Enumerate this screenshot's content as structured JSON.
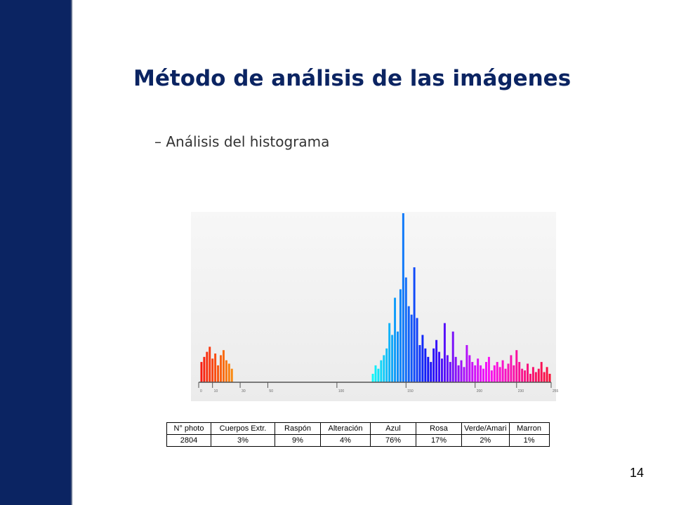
{
  "header": {
    "title": "Método de análisis de las imágenes",
    "bullet": "– Análisis del histograma"
  },
  "chart_data": {
    "type": "bar",
    "x": [
      2,
      4,
      6,
      8,
      10,
      12,
      14,
      16,
      18,
      20,
      22,
      24,
      126,
      128,
      130,
      132,
      134,
      136,
      138,
      140,
      142,
      144,
      146,
      148,
      150,
      152,
      154,
      156,
      158,
      160,
      162,
      164,
      166,
      168,
      170,
      172,
      174,
      176,
      178,
      180,
      182,
      184,
      186,
      188,
      190,
      192,
      194,
      196,
      198,
      200,
      202,
      204,
      206,
      208,
      210,
      212,
      214,
      216,
      218,
      220,
      222,
      224,
      226,
      228,
      230,
      232,
      234,
      236,
      238,
      240,
      242,
      244,
      246,
      248,
      250,
      252,
      254
    ],
    "values": [
      12,
      15,
      18,
      21,
      14,
      17,
      10,
      16,
      19,
      13,
      11,
      8,
      5,
      10,
      8,
      13,
      16,
      20,
      35,
      28,
      50,
      30,
      55,
      100,
      62,
      45,
      40,
      68,
      38,
      22,
      28,
      20,
      15,
      12,
      20,
      25,
      18,
      14,
      35,
      16,
      12,
      30,
      15,
      10,
      13,
      9,
      22,
      16,
      12,
      10,
      14,
      10,
      8,
      12,
      15,
      7,
      10,
      12,
      9,
      13,
      8,
      11,
      16,
      10,
      19,
      12,
      8,
      7,
      11,
      5,
      9,
      6,
      8,
      12,
      6,
      9,
      5
    ],
    "xlim": [
      0,
      255
    ],
    "ylim": [
      0,
      100
    ],
    "xticks": [
      0,
      10,
      30,
      50,
      100,
      150,
      200,
      230,
      255
    ]
  },
  "table": {
    "rows": [
      [
        "N° photo",
        "Cuerpos  Extr.",
        "Raspón",
        "Alteración",
        "Azul",
        "Rosa",
        "Verde/Amari",
        "Marron"
      ],
      [
        "2804",
        "3%",
        "9%",
        "4%",
        "76%",
        "17%",
        "2%",
        "1%"
      ]
    ]
  },
  "footer": {
    "page": "14"
  }
}
